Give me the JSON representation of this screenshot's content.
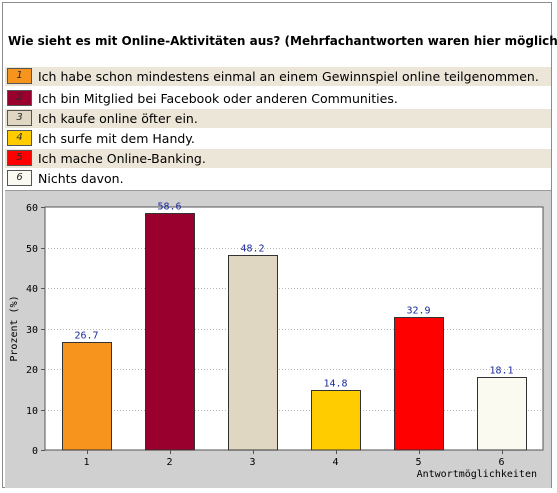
{
  "title": "Wie sieht es mit Online-Aktivitäten aus? (Mehrfachantworten waren hier möglich)",
  "legend": [
    {
      "key": "1",
      "label": "Ich habe schon mindestens einmal an einem Gewinnspiel online teilgenommen.",
      "color": "#f7941d"
    },
    {
      "key": "2",
      "label": "Ich bin Mitglied bei Facebook oder anderen Communities.",
      "color": "#99002e"
    },
    {
      "key": "3",
      "label": "Ich kaufe online öfter ein.",
      "color": "#e0d7c3"
    },
    {
      "key": "4",
      "label": "Ich surfe mit dem Handy.",
      "color": "#ffcc00"
    },
    {
      "key": "5",
      "label": "Ich mache Online-Banking.",
      "color": "#ff0000"
    },
    {
      "key": "6",
      "label": "Nichts davon.",
      "color": "#fafaf0"
    }
  ],
  "chart_data": {
    "type": "bar",
    "categories": [
      "1",
      "2",
      "3",
      "4",
      "5",
      "6"
    ],
    "values": [
      26.7,
      58.6,
      48.2,
      14.8,
      32.9,
      18.1
    ],
    "value_labels": [
      "26.7",
      "58.6",
      "48.2",
      "14.8",
      "32.9",
      "18.1"
    ],
    "colors": [
      "#f7941d",
      "#99002e",
      "#e0d7c3",
      "#ffcc00",
      "#ff0000",
      "#fafaf0"
    ],
    "ylabel": "Prozent (%)",
    "xlabel": "Antwortmöglichkeiten",
    "ylim": [
      0,
      60
    ],
    "yticks": [
      0,
      10,
      20,
      30,
      40,
      50,
      60
    ],
    "grid": true
  }
}
